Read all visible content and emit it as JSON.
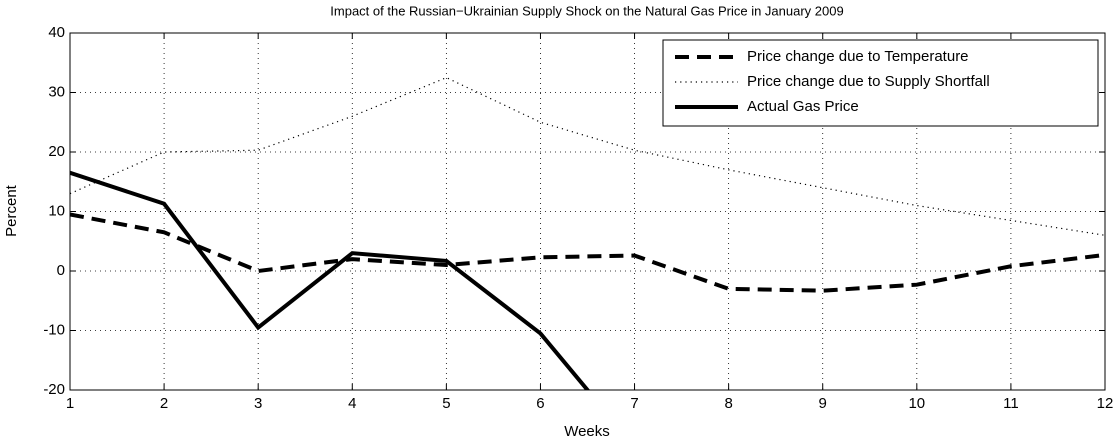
{
  "chart_data": {
    "type": "line",
    "title": "Impact of the Russian−Ukrainian Supply Shock on the Natural Gas Price in January 2009",
    "x_label": "Weeks",
    "y_label": "Percent",
    "x": [
      1,
      2,
      3,
      4,
      5,
      6,
      7,
      8,
      9,
      10,
      11,
      12
    ],
    "series": [
      {
        "name": "Price change due to Temperature",
        "color": "#000000",
        "line_style": "dashed",
        "values": [
          9.5,
          6.5,
          0,
          2,
          1,
          2.3,
          2.6,
          -3,
          -3.3,
          -2.3,
          0.8,
          2.7
        ]
      },
      {
        "name": "Price change due to Supply Shortfall",
        "color": "#000000",
        "line_style": "dotted",
        "values": [
          13,
          20,
          20.3,
          26,
          32.5,
          25,
          20.3,
          17,
          14,
          11,
          8.5,
          6
        ]
      },
      {
        "name": "Actual Gas Price",
        "color": "#000000",
        "line_style": "solid",
        "values": [
          16.5,
          11.3,
          -9.5,
          3,
          1.7,
          -10.5,
          -29.5,
          null,
          null,
          null,
          null,
          null
        ]
      }
    ],
    "xlim": [
      1,
      12
    ],
    "ylim": [
      -20,
      40
    ],
    "xticks": [
      1,
      2,
      3,
      4,
      5,
      6,
      7,
      8,
      9,
      10,
      11,
      12
    ],
    "yticks": [
      -20,
      -10,
      0,
      10,
      20,
      30,
      40
    ],
    "grid": true,
    "legend": "top-right"
  }
}
